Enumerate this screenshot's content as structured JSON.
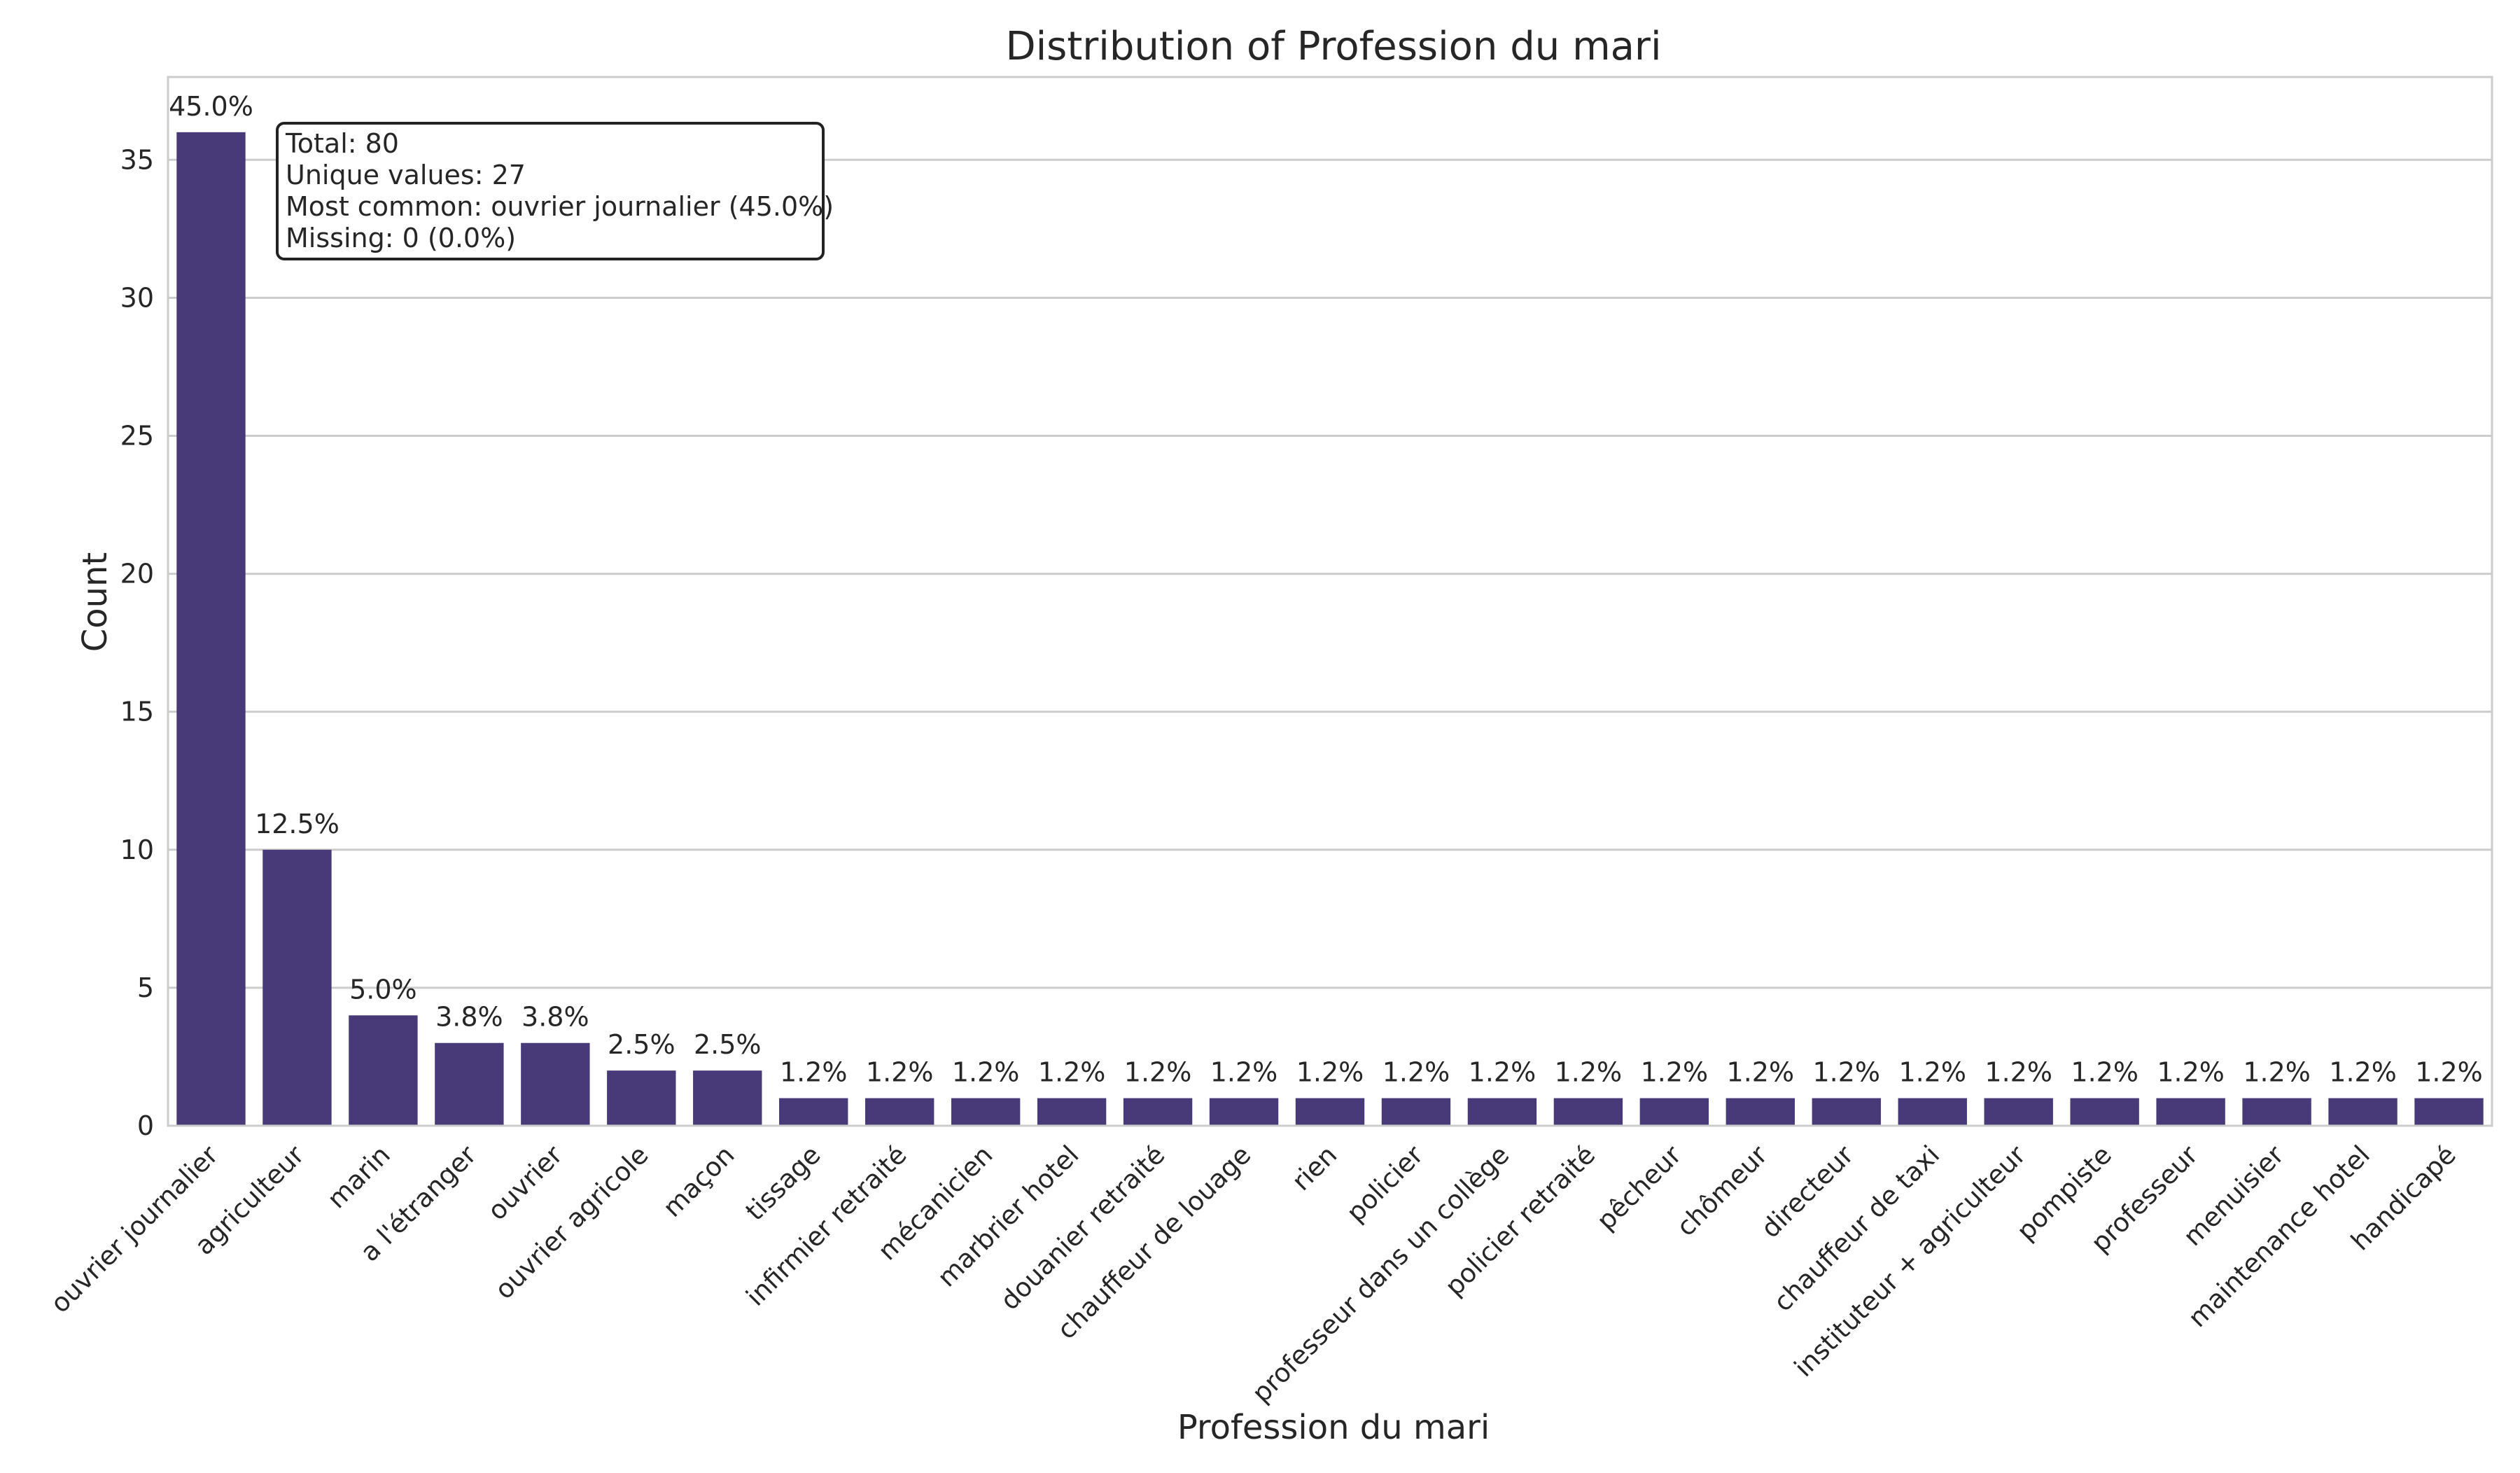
{
  "chart_data": {
    "type": "bar",
    "title": "Distribution of Profession du mari",
    "xlabel": "Profession du mari",
    "ylabel": "Count",
    "ylim": [
      0,
      38
    ],
    "yticks": [
      0,
      5,
      10,
      15,
      20,
      25,
      30,
      35
    ],
    "grid": "horizontal",
    "bar_color": "#483a78",
    "categories": [
      "ouvrier journalier",
      "agriculteur",
      "marin",
      "a l'étranger",
      "ouvrier",
      "ouvrier agricole",
      "maçon",
      "tissage",
      "infirmier retraité",
      "mécanicien",
      "marbrier hotel",
      "douanier retraité",
      "chauffeur de louage",
      "rien",
      "policier",
      "professeur dans un collège",
      "policier retraité",
      "pêcheur",
      "chômeur",
      "directeur",
      "chauffeur de taxi",
      "instituteur + agriculteur",
      "pompiste",
      "professeur",
      "menuisier",
      "maintenance hotel",
      "handicapé"
    ],
    "values": [
      36,
      10,
      4,
      3,
      3,
      2,
      2,
      1,
      1,
      1,
      1,
      1,
      1,
      1,
      1,
      1,
      1,
      1,
      1,
      1,
      1,
      1,
      1,
      1,
      1,
      1,
      1
    ],
    "data_labels": [
      "45.0%",
      "12.5%",
      "5.0%",
      "3.8%",
      "3.8%",
      "2.5%",
      "2.5%",
      "1.2%",
      "1.2%",
      "1.2%",
      "1.2%",
      "1.2%",
      "1.2%",
      "1.2%",
      "1.2%",
      "1.2%",
      "1.2%",
      "1.2%",
      "1.2%",
      "1.2%",
      "1.2%",
      "1.2%",
      "1.2%",
      "1.2%",
      "1.2%",
      "1.2%",
      "1.2%"
    ],
    "annotation": {
      "position": "top-left",
      "lines": [
        "Total: 80",
        "Unique values: 27",
        "Most common: ouvrier journalier (45.0%)",
        "Missing: 0 (0.0%)"
      ]
    }
  }
}
